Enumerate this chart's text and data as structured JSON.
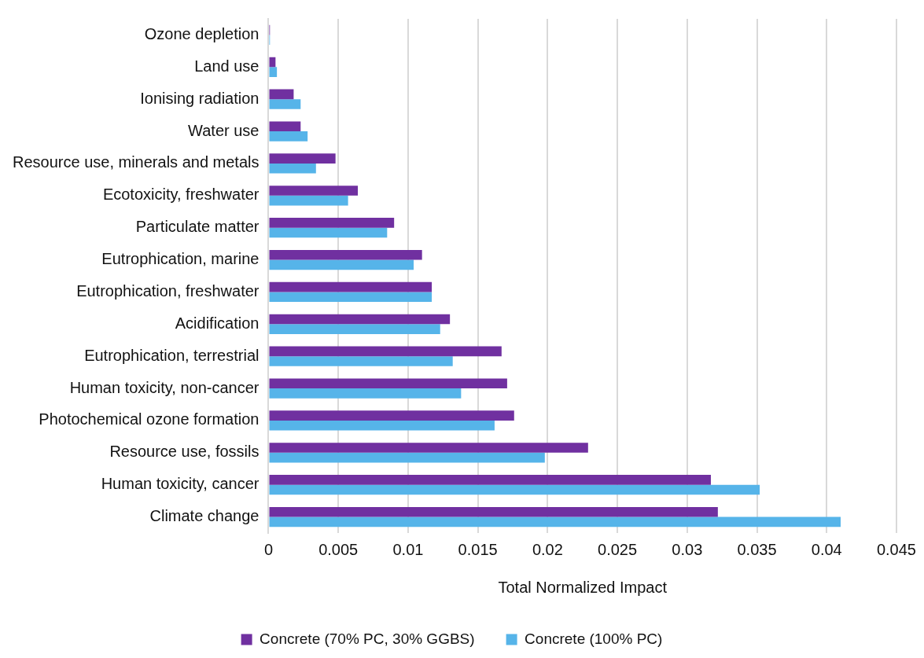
{
  "chart_data": {
    "type": "bar",
    "orientation": "horizontal",
    "xlabel": "Total Normalized Impact",
    "categories": [
      "Ozone depletion",
      "Land use",
      "Ionising radiation",
      "Water use",
      "Resource use, minerals and metals",
      "Ecotoxicity, freshwater",
      "Particulate matter",
      "Eutrophication, marine",
      "Eutrophication, freshwater",
      "Acidification",
      "Eutrophication, terrestrial",
      "Human toxicity, non-cancer",
      "Photochemical ozone formation",
      "Resource use, fossils",
      "Human toxicity, cancer",
      "Climate change"
    ],
    "series": [
      {
        "name": "Concrete (70% PC, 30% GGBS)",
        "color": "#7030a0",
        "values": [
          0.0001,
          0.0005,
          0.0018,
          0.0023,
          0.0048,
          0.0064,
          0.009,
          0.011,
          0.0117,
          0.013,
          0.0167,
          0.0171,
          0.0176,
          0.0229,
          0.0317,
          0.0322
        ]
      },
      {
        "name": "Concrete (100% PC)",
        "color": "#56b4e9",
        "values": [
          0.0001,
          0.0006,
          0.0023,
          0.0028,
          0.0034,
          0.0057,
          0.0085,
          0.0104,
          0.0117,
          0.0123,
          0.0132,
          0.0138,
          0.0162,
          0.0198,
          0.0352,
          0.041
        ]
      }
    ],
    "xlim": [
      0,
      0.045
    ],
    "xticks": [
      0,
      0.005,
      0.01,
      0.015,
      0.02,
      0.025,
      0.03,
      0.035,
      0.04,
      0.045
    ],
    "grid": "x",
    "legend": "bottom"
  }
}
